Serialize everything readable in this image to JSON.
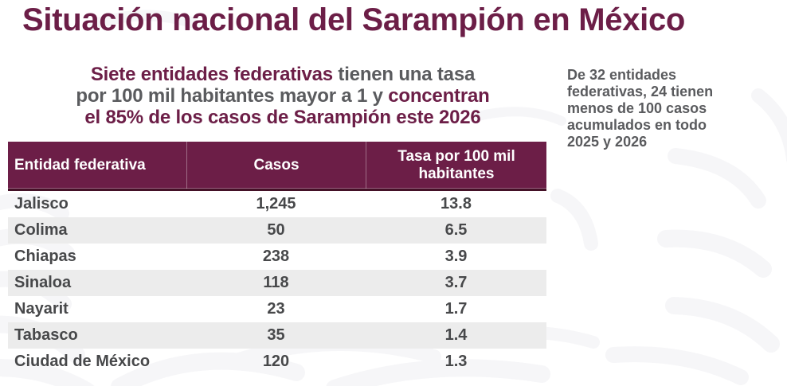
{
  "colors": {
    "accent": "#6C1E47",
    "accent_dark": "#441127",
    "muted_text": "#5A5B5E",
    "table_text": "#47484A",
    "row_alt_bg": "#ECECEC",
    "header_text": "#FFFFFF",
    "watermark": "#F6F6F8"
  },
  "header": {
    "title": "Situación nacional del Sarampión en México"
  },
  "subtitle": {
    "lines": [
      {
        "segments": [
          {
            "text": "Siete entidades federativas",
            "tone": "accent"
          },
          {
            "text": " tienen una tasa",
            "tone": "muted"
          }
        ]
      },
      {
        "segments": [
          {
            "text": "por 100 mil habitantes mayor a 1 y ",
            "tone": "muted"
          },
          {
            "text": "concentran",
            "tone": "accent"
          }
        ]
      },
      {
        "segments": [
          {
            "text": "el 85% de los casos de Sarampión este 2026",
            "tone": "accent"
          }
        ]
      }
    ]
  },
  "side_note": {
    "lines": [
      "De 32 entidades",
      "federativas, 24 tienen",
      "menos de 100 casos",
      "acumulados en todo",
      "2025 y 2026"
    ]
  },
  "table": {
    "columns": [
      "Entidad federativa",
      "Casos",
      "Tasa por 100 mil habitantes"
    ],
    "rows": [
      {
        "entidad": "Jalisco",
        "casos": "1,245",
        "tasa": "13.8"
      },
      {
        "entidad": "Colima",
        "casos": "50",
        "tasa": "6.5"
      },
      {
        "entidad": "Chiapas",
        "casos": "238",
        "tasa": "3.9"
      },
      {
        "entidad": "Sinaloa",
        "casos": "118",
        "tasa": "3.7"
      },
      {
        "entidad": "Nayarit",
        "casos": "23",
        "tasa": "1.7"
      },
      {
        "entidad": "Tabasco",
        "casos": "35",
        "tasa": "1.4"
      },
      {
        "entidad": "Ciudad de México",
        "casos": "120",
        "tasa": "1.3"
      }
    ]
  }
}
